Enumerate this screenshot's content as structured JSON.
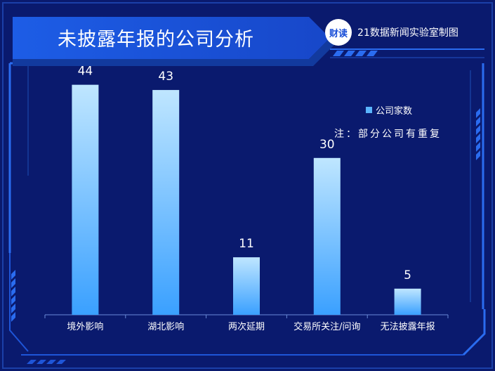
{
  "header": {
    "title": "未披露年报的公司分析",
    "logo_text": "财读",
    "source": "21数据新闻实验室制图"
  },
  "legend": {
    "label": "公司家数"
  },
  "note": "注：部分公司有重复",
  "colors": {
    "background": "#0a1a6e",
    "frame": "#1e5fe0",
    "bar_top": "#bfe6ff",
    "bar_bottom": "#3aa0ff"
  },
  "chart_data": {
    "type": "bar",
    "categories": [
      "境外影响",
      "湖北影响",
      "两次延期",
      "交易所关注/问询",
      "无法披露年报"
    ],
    "values": [
      44,
      43,
      11,
      30,
      5
    ],
    "ylim": [
      0,
      50
    ],
    "grid": false,
    "legend_position": "top-right"
  }
}
